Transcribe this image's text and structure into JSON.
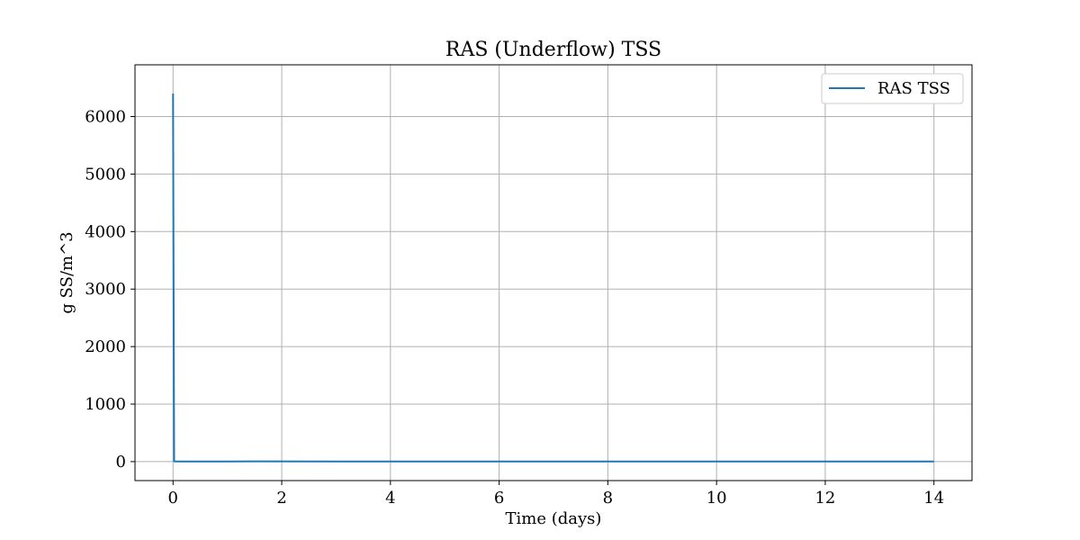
{
  "chart_data": {
    "type": "line",
    "title": "RAS (Underflow) TSS",
    "xlabel": "Time (days)",
    "ylabel": "g SS/m^3",
    "xlim": [
      -0.7,
      14.7
    ],
    "ylim": [
      -330,
      6900
    ],
    "xticks": [
      0,
      2,
      4,
      6,
      8,
      10,
      12,
      14
    ],
    "yticks": [
      0,
      1000,
      2000,
      3000,
      4000,
      5000,
      6000
    ],
    "xtick_labels": [
      "0",
      "2",
      "4",
      "6",
      "8",
      "10",
      "12",
      "14"
    ],
    "ytick_labels": [
      "0",
      "1000",
      "2000",
      "3000",
      "4000",
      "5000",
      "6000"
    ],
    "grid": true,
    "legend_position": "top-right",
    "series": [
      {
        "name": "RAS TSS",
        "color": "#1f77b4",
        "x": [
          0,
          0.01,
          0.02,
          0.05,
          0.5,
          1.5,
          3,
          5,
          7,
          9,
          11,
          14
        ],
        "y": [
          6400,
          3000,
          5,
          2,
          3,
          4,
          3,
          3,
          3,
          3,
          3,
          3
        ]
      }
    ]
  }
}
